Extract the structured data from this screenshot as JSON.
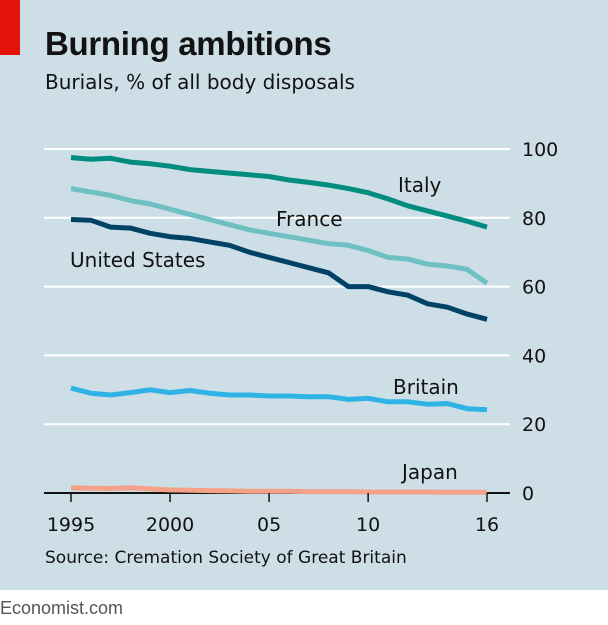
{
  "header": {
    "title": "Burning ambitions",
    "subtitle": "Burials, % of all body disposals"
  },
  "footer": {
    "source": "Source: Cremation Society of Great Britain",
    "brand": "Economist.com"
  },
  "chart_data": {
    "type": "line",
    "title": "Burning ambitions",
    "subtitle": "Burials, % of all body disposals",
    "xlabel": "",
    "ylabel": "",
    "xlim": [
      1995,
      2016
    ],
    "ylim": [
      0,
      100
    ],
    "yticks": [
      0,
      20,
      40,
      60,
      80,
      100
    ],
    "xtick_values": [
      1995,
      2000,
      2005,
      2010,
      2016
    ],
    "xtick_labels": [
      "1995",
      "2000",
      "05",
      "10",
      "16"
    ],
    "ytick_labels": [
      "0",
      "20",
      "40",
      "60",
      "80",
      "100"
    ],
    "grid": true,
    "x": [
      1995,
      1996,
      1997,
      1998,
      1999,
      2000,
      2001,
      2002,
      2003,
      2004,
      2005,
      2006,
      2007,
      2008,
      2009,
      2010,
      2011,
      2012,
      2013,
      2014,
      2015,
      2016
    ],
    "series": [
      {
        "name": "Italy",
        "color": "#008c7e",
        "values": [
          97.5,
          97,
          97.3,
          96.2,
          95.7,
          95,
          94,
          93.5,
          93,
          92.5,
          92,
          91,
          90.3,
          89.5,
          88.5,
          87.3,
          85.5,
          83.5,
          82,
          80.5,
          79,
          77.3
        ]
      },
      {
        "name": "France",
        "color": "#6fc0c3",
        "values": [
          88.5,
          87.5,
          86.5,
          85,
          84,
          82.5,
          81,
          79.5,
          78,
          76.5,
          75.5,
          74.5,
          73.5,
          72.5,
          72,
          70.5,
          68.5,
          68,
          66.5,
          66,
          65,
          61
        ]
      },
      {
        "name": "United States",
        "color": "#004166",
        "values": [
          79.5,
          79.3,
          77.3,
          77,
          75.5,
          74.5,
          74,
          73,
          72,
          70,
          68.5,
          67,
          65.5,
          64,
          60,
          60,
          58.5,
          57.5,
          55,
          54,
          52,
          50.5
        ]
      },
      {
        "name": "Britain",
        "color": "#2fb2e5",
        "values": [
          30.5,
          29,
          28.5,
          29.2,
          30,
          29.2,
          29.8,
          29,
          28.5,
          28.5,
          28.2,
          28.2,
          28,
          28,
          27.2,
          27.5,
          26.5,
          26.5,
          25.8,
          26,
          24.5,
          24.2
        ]
      },
      {
        "name": "Japan",
        "color": "#f5a187",
        "values": [
          1.5,
          1.4,
          1.3,
          1.5,
          1.2,
          0.9,
          0.8,
          0.7,
          0.6,
          0.5,
          0.5,
          0.5,
          0.4,
          0.4,
          0.4,
          0.3,
          0.3,
          0.3,
          0.3,
          0.2,
          0.2,
          0.2
        ]
      }
    ],
    "annotations": [
      "Italy",
      "France",
      "United States",
      "Britain",
      "Japan"
    ]
  }
}
